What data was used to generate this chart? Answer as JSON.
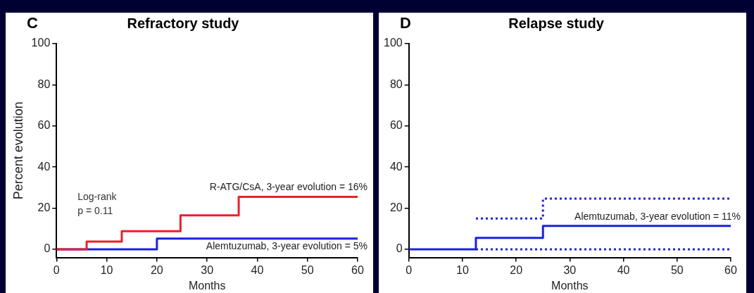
{
  "chart_data": [
    {
      "type": "step",
      "title": "Refractory study",
      "xlabel": "Months",
      "ylabel": "Percent evolution",
      "annotations": [
        "C",
        "Log-rank",
        "p = 0.11"
      ],
      "xlim": [
        0,
        60
      ],
      "xticks": [
        0,
        10,
        20,
        30,
        40,
        50,
        60
      ],
      "ylim": [
        -4,
        100
      ],
      "yticks": [
        0,
        20,
        40,
        60,
        80,
        100
      ],
      "grid": false,
      "legend": false,
      "line_style": "solid",
      "series": [
        {
          "name": "R-ATG/CsA, 3-year evolution = 16%",
          "color": "#e8202a",
          "x": [
            0,
            6,
            13,
            24.7,
            36.3,
            60
          ],
          "values": [
            0,
            3.7,
            8.8,
            16.5,
            25.5,
            25.5
          ]
        },
        {
          "name": "Alemtuzumab, 3-year evolution = 5%",
          "color": "#1a22e0",
          "x": [
            0,
            20,
            60
          ],
          "values": [
            0,
            5.2,
            5.2
          ]
        }
      ]
    },
    {
      "type": "step",
      "title": "Relapse study",
      "xlabel": "Months",
      "annotations": [
        "D"
      ],
      "xlim": [
        0,
        60
      ],
      "xticks": [
        0,
        10,
        20,
        30,
        40,
        50,
        60
      ],
      "ylim": [
        -4,
        100
      ],
      "yticks": [
        0,
        20,
        40,
        60,
        80,
        100
      ],
      "grid": false,
      "legend": false,
      "line_style": "solid",
      "series": [
        {
          "name": "Alemtuzumab, 3-year evolution = 11%",
          "color": "#1a22e0",
          "x": [
            0,
            12.5,
            25,
            60
          ],
          "values": [
            0,
            5.5,
            11.4,
            11.4
          ]
        },
        {
          "color": "#1a22e0",
          "line_style": "dotted",
          "x": [
            12.5,
            25,
            60
          ],
          "values": [
            15,
            24.6,
            24.6
          ]
        },
        {
          "color": "#1a22e0",
          "line_style": "dotted",
          "x": [
            12.5,
            60
          ],
          "values": [
            0,
            0
          ]
        }
      ]
    }
  ]
}
